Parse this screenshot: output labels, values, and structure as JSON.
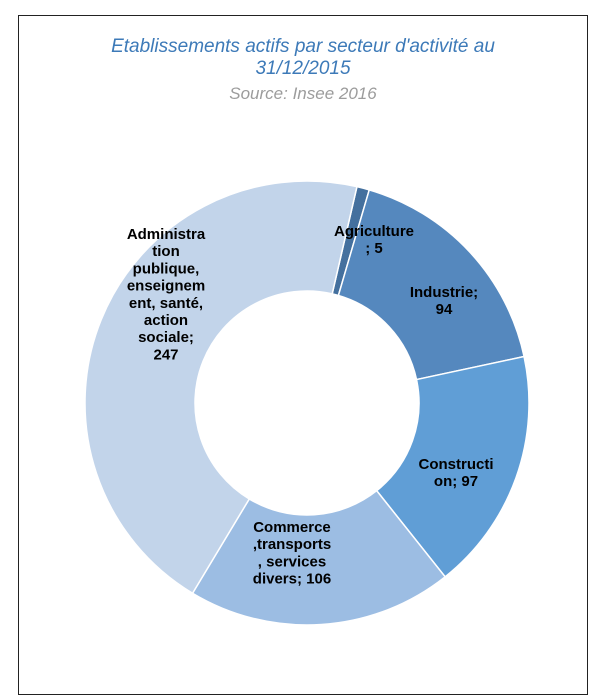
{
  "chart_data": {
    "type": "pie",
    "title_lines": [
      "Etablissements actifs par secteur d'activité au",
      "31/12/2015"
    ],
    "subtitle": "Source: Insee 2016",
    "slices": [
      {
        "name": "Agriculture",
        "value": 5,
        "color": "#44709e",
        "label_lines": [
          "Agriculture",
          "; 5"
        ]
      },
      {
        "name": "Industrie",
        "value": 94,
        "color": "#5588be",
        "label_lines": [
          "Industrie;",
          "94"
        ]
      },
      {
        "name": "Construction",
        "value": 97,
        "color": "#609ed6",
        "label_lines": [
          "Constructi",
          "on; 97"
        ]
      },
      {
        "name": "Commerce,transports, services divers",
        "value": 106,
        "color": "#9cbde3",
        "label_lines": [
          "Commerce",
          ",transports",
          ", services",
          "divers; 106"
        ]
      },
      {
        "name": "Administration publique, enseignement, santé, action sociale",
        "value": 247,
        "color": "#c2d4ea",
        "label_lines": [
          "Administra",
          "tion",
          "publique,",
          "enseignem",
          "ent, santé,",
          "action",
          "sociale;",
          "247"
        ]
      }
    ]
  }
}
